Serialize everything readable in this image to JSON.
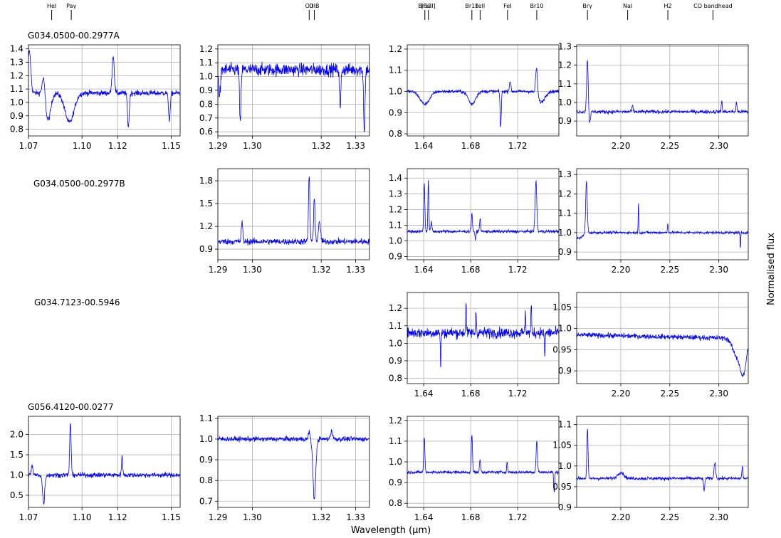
{
  "chart_data": {
    "type": "line",
    "xlabel": "Wavelength (µm)",
    "ylabel": "Normalised flux",
    "line_color": "#0000ff",
    "grid": true,
    "line_markers": [
      {
        "label": "HeI",
        "x": 1.083,
        "band": 0
      },
      {
        "label": "Paγ",
        "x": 1.094,
        "band": 0
      },
      {
        "label": "O I",
        "x": 1.3165,
        "band": 1
      },
      {
        "label": "DIB",
        "x": 1.318,
        "band": 1
      },
      {
        "label": "Br12",
        "x": 1.641,
        "band": 2
      },
      {
        "label": "[FeII]",
        "x": 1.644,
        "band": 2
      },
      {
        "label": "Br11",
        "x": 1.681,
        "band": 2
      },
      {
        "label": "FeII",
        "x": 1.688,
        "band": 2
      },
      {
        "label": "FeI",
        "x": 1.7113,
        "band": 2
      },
      {
        "label": "Br10",
        "x": 1.7362,
        "band": 2
      },
      {
        "label": "Brγ",
        "x": 2.166,
        "band": 3
      },
      {
        "label": "NaI",
        "x": 2.207,
        "band": 3
      },
      {
        "label": "H2",
        "x": 2.248,
        "band": 3
      },
      {
        "label": "CO bandhead",
        "x": 2.294,
        "band": 3
      }
    ],
    "bands": [
      {
        "xlim": [
          1.07,
          1.155
        ],
        "xticks": [
          1.07,
          1.1,
          1.12,
          1.15
        ],
        "xtick_labels": [
          "1.07",
          "1.10",
          "1.12",
          "1.15"
        ]
      },
      {
        "xlim": [
          1.29,
          1.334
        ],
        "xticks": [
          1.29,
          1.3,
          1.32,
          1.33
        ],
        "xtick_labels": [
          "1.29",
          "1.30",
          "1.32",
          "1.33"
        ]
      },
      {
        "xlim": [
          1.626,
          1.755
        ],
        "xticks": [
          1.64,
          1.68,
          1.72
        ],
        "xtick_labels": [
          "1.64",
          "1.68",
          "1.72"
        ]
      },
      {
        "xlim": [
          2.155,
          2.33
        ],
        "xticks": [
          2.2,
          2.25,
          2.3
        ],
        "xtick_labels": [
          "2.20",
          "2.25",
          "2.30"
        ]
      }
    ],
    "rows": [
      {
        "source": "G034.0500-00.2977A",
        "panels": [
          {
            "band": 0,
            "ylim": [
              0.75,
              1.43
            ],
            "yticks": [
              0.8,
              0.9,
              1.0,
              1.1,
              1.2,
              1.3,
              1.4
            ],
            "ytick_labels": [
              "0.8",
              "0.9",
              "1.0",
              "1.1",
              "1.2",
              "1.3",
              "1.4"
            ],
            "baseline": 1.07,
            "noise": 0.02,
            "features": [
              [
                1.0705,
                0.31,
                0.0008
              ],
              [
                1.0785,
                0.15,
                0.0008
              ],
              [
                1.081,
                -0.2,
                0.0015
              ],
              [
                1.093,
                -0.22,
                0.0025
              ],
              [
                1.1175,
                0.28,
                0.0006
              ],
              [
                1.126,
                -0.25,
                0.0005
              ],
              [
                1.149,
                -0.2,
                0.0005
              ]
            ],
            "slope": 0
          },
          {
            "band": 1,
            "ylim": [
              0.57,
              1.23
            ],
            "yticks": [
              0.6,
              0.7,
              0.8,
              0.9,
              1.0,
              1.1,
              1.2
            ],
            "ytick_labels": [
              "0.6",
              "0.7",
              "0.8",
              "0.9",
              "1.0",
              "1.1",
              "1.2"
            ],
            "baseline": 1.05,
            "noise": 0.045,
            "features": [
              [
                1.2905,
                -0.18,
                0.0003
              ],
              [
                1.2965,
                -0.4,
                0.0002
              ],
              [
                1.3255,
                -0.28,
                0.0002
              ],
              [
                1.3325,
                -0.46,
                0.0002
              ]
            ],
            "slope": 0
          },
          {
            "band": 2,
            "ylim": [
              0.79,
              1.22
            ],
            "yticks": [
              0.8,
              0.9,
              1.0,
              1.1,
              1.2
            ],
            "ytick_labels": [
              "0.8",
              "0.9",
              "1.0",
              "1.1",
              "1.2"
            ],
            "baseline": 1.0,
            "noise": 0.008,
            "features": [
              [
                1.641,
                -0.06,
                0.004
              ],
              [
                1.681,
                -0.06,
                0.003
              ],
              [
                1.7055,
                -0.17,
                0.0005
              ],
              [
                1.736,
                0.13,
                0.0008
              ],
              [
                1.74,
                -0.05,
                0.003
              ],
              [
                1.7135,
                0.05,
                0.0006
              ]
            ],
            "slope": 0
          },
          {
            "band": 3,
            "ylim": [
              0.82,
              1.31
            ],
            "yticks": [
              0.9,
              1.0,
              1.1,
              1.2,
              1.3
            ],
            "ytick_labels": [
              "0.9",
              "1.0",
              "1.1",
              "1.2",
              "1.3"
            ],
            "baseline": 0.95,
            "noise": 0.01,
            "features": [
              [
                2.166,
                0.29,
                0.0008
              ],
              [
                2.168,
                -0.06,
                0.001
              ],
              [
                2.212,
                0.03,
                0.0006
              ],
              [
                2.303,
                0.06,
                0.0005
              ],
              [
                2.318,
                0.05,
                0.0005
              ]
            ],
            "slope": 0
          }
        ]
      },
      {
        "source": "G034.0500-00.2977B",
        "panels": [
          null,
          {
            "band": 1,
            "ylim": [
              0.76,
              1.96
            ],
            "yticks": [
              0.9,
              1.2,
              1.5,
              1.8
            ],
            "ytick_labels": [
              "0.9",
              "1.2",
              "1.5",
              "1.8"
            ],
            "baseline": 1.0,
            "noise": 0.04,
            "features": [
              [
                1.297,
                0.27,
                0.0002
              ],
              [
                1.3165,
                0.88,
                0.0002
              ],
              [
                1.318,
                0.6,
                0.0002
              ],
              [
                1.3195,
                0.25,
                0.0003
              ]
            ],
            "slope": 0
          },
          {
            "band": 2,
            "ylim": [
              0.88,
              1.46
            ],
            "yticks": [
              0.9,
              1.0,
              1.1,
              1.2,
              1.3,
              1.4
            ],
            "ytick_labels": [
              "0.9",
              "1.0",
              "1.1",
              "1.2",
              "1.3",
              "1.4"
            ],
            "baseline": 1.06,
            "noise": 0.01,
            "features": [
              [
                1.6405,
                0.3,
                0.0005
              ],
              [
                1.644,
                0.33,
                0.0004
              ],
              [
                1.6465,
                0.06,
                0.0005
              ],
              [
                1.681,
                0.11,
                0.0005
              ],
              [
                1.688,
                0.08,
                0.0005
              ],
              [
                1.7355,
                0.32,
                0.0007
              ],
              [
                1.684,
                -0.06,
                0.0004
              ]
            ],
            "slope": 0
          },
          {
            "band": 3,
            "ylim": [
              0.86,
              1.33
            ],
            "yticks": [
              0.9,
              1.0,
              1.1,
              1.2,
              1.3
            ],
            "ytick_labels": [
              "0.9",
              "1.0",
              "1.1",
              "1.2",
              "1.3"
            ],
            "baseline": 1.0,
            "noise": 0.007,
            "features": [
              [
                2.165,
                0.27,
                0.0008
              ],
              [
                2.218,
                0.16,
                0.0003
              ],
              [
                2.248,
                0.05,
                0.0004
              ],
              [
                2.322,
                -0.09,
                0.0003
              ],
              [
                2.157,
                -0.03,
                0.004
              ]
            ],
            "slope": 0
          }
        ]
      },
      {
        "source": "G034.7123-00.5946",
        "panels": [
          null,
          null,
          {
            "band": 2,
            "ylim": [
              0.77,
              1.29
            ],
            "yticks": [
              0.8,
              0.9,
              1.0,
              1.1,
              1.2
            ],
            "ytick_labels": [
              "0.8",
              "0.9",
              "1.0",
              "1.1",
              "1.2"
            ],
            "baseline": 1.06,
            "noise": 0.03,
            "features": [
              [
                1.676,
                0.19,
                0.0003
              ],
              [
                1.6845,
                0.14,
                0.0003
              ],
              [
                1.6545,
                -0.2,
                0.0003
              ],
              [
                1.7265,
                0.14,
                0.0003
              ],
              [
                1.7315,
                0.16,
                0.0003
              ],
              [
                1.743,
                -0.15,
                0.0003
              ]
            ],
            "slope": 0
          },
          {
            "band": 3,
            "ylim": [
              0.87,
              1.085
            ],
            "yticks": [
              0.9,
              0.95,
              1.0,
              1.05
            ],
            "ytick_labels": [
              "0.9",
              "0.95",
              "1.0",
              "1.05"
            ],
            "baseline": 0.985,
            "noise": 0.006,
            "features": [
              [
                2.325,
                -0.08,
                0.003
              ],
              [
                2.318,
                -0.04,
                0.004
              ]
            ],
            "slope": -0.05
          }
        ]
      },
      {
        "source": "G056.4120-00.0277",
        "panels": [
          {
            "band": 0,
            "ylim": [
              0.2,
              2.45
            ],
            "yticks": [
              0.5,
              1.0,
              1.5,
              2.0
            ],
            "ytick_labels": [
              "0.5",
              "1.0",
              "1.5",
              "2.0"
            ],
            "baseline": 1.0,
            "noise": 0.06,
            "features": [
              [
                1.0785,
                -0.7,
                0.0006
              ],
              [
                1.0935,
                1.3,
                0.0004
              ],
              [
                1.1225,
                0.5,
                0.0003
              ],
              [
                1.072,
                0.25,
                0.0004
              ]
            ],
            "slope": 0
          },
          {
            "band": 1,
            "ylim": [
              0.67,
              1.11
            ],
            "yticks": [
              0.7,
              0.8,
              0.9,
              1.0,
              1.1
            ],
            "ytick_labels": [
              "0.7",
              "0.8",
              "0.9",
              "1.0",
              "1.1"
            ],
            "baseline": 1.0,
            "noise": 0.012,
            "features": [
              [
                1.318,
                -0.29,
                0.0004
              ],
              [
                1.3165,
                0.04,
                0.0002
              ],
              [
                1.323,
                0.04,
                0.0003
              ]
            ],
            "slope": 0
          },
          {
            "band": 2,
            "ylim": [
              0.78,
              1.22
            ],
            "yticks": [
              0.8,
              0.9,
              1.0,
              1.1,
              1.2
            ],
            "ytick_labels": [
              "0.8",
              "0.9",
              "1.0",
              "1.1",
              "1.2"
            ],
            "baseline": 0.95,
            "noise": 0.007,
            "features": [
              [
                1.6405,
                0.17,
                0.0005
              ],
              [
                1.681,
                0.18,
                0.0005
              ],
              [
                1.688,
                0.06,
                0.0005
              ],
              [
                1.711,
                0.05,
                0.0004
              ],
              [
                1.7362,
                0.15,
                0.0006
              ],
              [
                1.751,
                -0.1,
                0.0004
              ]
            ],
            "slope": 0
          },
          {
            "band": 3,
            "ylim": [
              0.9,
              1.12
            ],
            "yticks": [
              0.9,
              0.95,
              1.0,
              1.05,
              1.1
            ],
            "ytick_labels": [
              "0.9",
              "0.95",
              "1.0",
              "1.05",
              "1.1"
            ],
            "baseline": 0.97,
            "noise": 0.004,
            "features": [
              [
                2.166,
                0.12,
                0.0006
              ],
              [
                2.296,
                0.04,
                0.0008
              ],
              [
                2.285,
                -0.03,
                0.0006
              ],
              [
                2.324,
                0.03,
                0.0005
              ],
              [
                2.2,
                0.015,
                0.003
              ]
            ],
            "slope": 0
          }
        ]
      }
    ]
  }
}
